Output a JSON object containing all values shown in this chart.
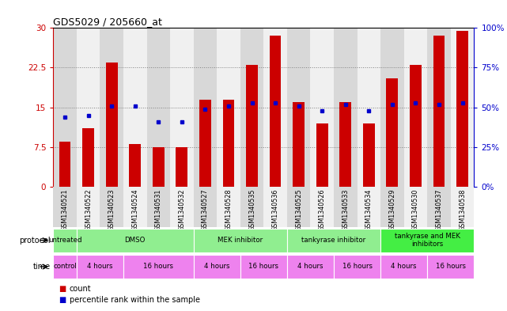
{
  "title": "GDS5029 / 205660_at",
  "samples": [
    "GSM1340521",
    "GSM1340522",
    "GSM1340523",
    "GSM1340524",
    "GSM1340531",
    "GSM1340532",
    "GSM1340527",
    "GSM1340528",
    "GSM1340535",
    "GSM1340536",
    "GSM1340525",
    "GSM1340526",
    "GSM1340533",
    "GSM1340534",
    "GSM1340529",
    "GSM1340530",
    "GSM1340537",
    "GSM1340538"
  ],
  "counts": [
    8.5,
    11.0,
    23.5,
    8.0,
    7.5,
    7.5,
    16.5,
    16.5,
    23.0,
    28.5,
    16.0,
    12.0,
    16.0,
    12.0,
    20.5,
    23.0,
    28.5,
    29.5
  ],
  "percentile_ranks": [
    44,
    45,
    51,
    51,
    41,
    41,
    49,
    51,
    53,
    53,
    51,
    48,
    52,
    48,
    52,
    53,
    52,
    53
  ],
  "bar_color": "#cc0000",
  "dot_color": "#0000cc",
  "ylim_left": [
    0,
    30
  ],
  "ylim_right": [
    0,
    100
  ],
  "yticks_left": [
    0,
    7.5,
    15,
    22.5,
    30
  ],
  "yticks_right": [
    0,
    25,
    50,
    75,
    100
  ],
  "ytick_labels_left": [
    "0",
    "7.5",
    "15",
    "22.5",
    "30"
  ],
  "ytick_labels_right": [
    "0%",
    "25%",
    "50%",
    "75%",
    "100%"
  ],
  "left_axis_color": "#cc0000",
  "right_axis_color": "#0000cc",
  "background_color": "#ffffff",
  "proto_groups": [
    {
      "label": "untreated",
      "start": 0,
      "end": 0,
      "color": "#90ee90"
    },
    {
      "label": "DMSO",
      "start": 1,
      "end": 5,
      "color": "#90ee90"
    },
    {
      "label": "MEK inhibitor",
      "start": 6,
      "end": 9,
      "color": "#90ee90"
    },
    {
      "label": "tankyrase inhibitor",
      "start": 10,
      "end": 13,
      "color": "#90ee90"
    },
    {
      "label": "tankyrase and MEK\ninhibitors",
      "start": 14,
      "end": 17,
      "color": "#44ee44"
    }
  ],
  "time_groups": [
    {
      "label": "control",
      "start": 0,
      "end": 0
    },
    {
      "label": "4 hours",
      "start": 1,
      "end": 2
    },
    {
      "label": "16 hours",
      "start": 3,
      "end": 5
    },
    {
      "label": "4 hours",
      "start": 6,
      "end": 7
    },
    {
      "label": "16 hours",
      "start": 8,
      "end": 9
    },
    {
      "label": "4 hours",
      "start": 10,
      "end": 11
    },
    {
      "label": "16 hours",
      "start": 12,
      "end": 13
    },
    {
      "label": "4 hours",
      "start": 14,
      "end": 15
    },
    {
      "label": "16 hours",
      "start": 16,
      "end": 17
    }
  ],
  "col_bg_even": "#d8d8d8",
  "col_bg_odd": "#f0f0f0"
}
